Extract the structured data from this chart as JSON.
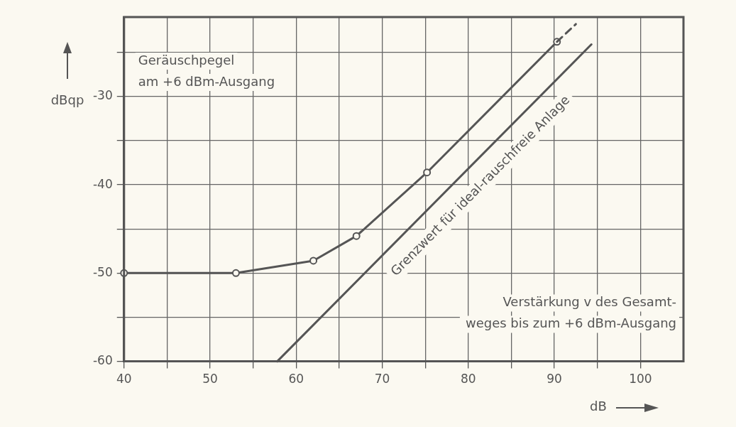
{
  "chart_data": {
    "type": "line",
    "xlabel": "dB",
    "ylabel": "dBqp",
    "xlim": [
      40,
      105
    ],
    "ylim": [
      -60,
      -21
    ],
    "xticks": [
      40,
      {
        "value": 45,
        "label": null
      },
      50,
      {
        "value": 55,
        "label": null
      },
      60,
      {
        "value": 65,
        "label": null
      },
      70,
      {
        "value": 75,
        "label": null
      },
      80,
      {
        "value": 85,
        "label": null
      },
      90,
      {
        "value": 95,
        "label": null
      },
      100
    ],
    "yticks": [
      -60,
      {
        "value": -55,
        "label": null
      },
      -50,
      {
        "value": -45,
        "label": null
      },
      -40,
      {
        "value": -35,
        "label": null
      },
      -30,
      {
        "value": -25,
        "label": null
      }
    ],
    "grid": true,
    "legend": false,
    "series": [
      {
        "type": "line",
        "color": "#555555",
        "marker": "circle",
        "line_style": "solid",
        "x": [
          40,
          53,
          62,
          67,
          75.2,
          90.3
        ],
        "values": [
          -50,
          -50,
          -48.6,
          -45.8,
          -38.6,
          -23.8
        ]
      },
      {
        "type": "line",
        "color": "#555555",
        "marker": "none",
        "line_style": "dashed",
        "x": [
          90.3,
          92.5
        ],
        "values": [
          -23.8,
          -21.8
        ]
      },
      {
        "type": "line",
        "name": "Grenzwert für ideal-rauschfreie Anlage",
        "color": "#555555",
        "marker": "none",
        "line_style": "solid",
        "x": [
          57.8,
          94.3
        ],
        "values": [
          -60,
          -24.1
        ]
      }
    ],
    "annotations": [
      "Geräuschpegel\nam +6 dBm-Ausgang",
      "Verstärkung v des Gesamt-\nweges bis zum +6 dBm-Ausgang"
    ]
  }
}
